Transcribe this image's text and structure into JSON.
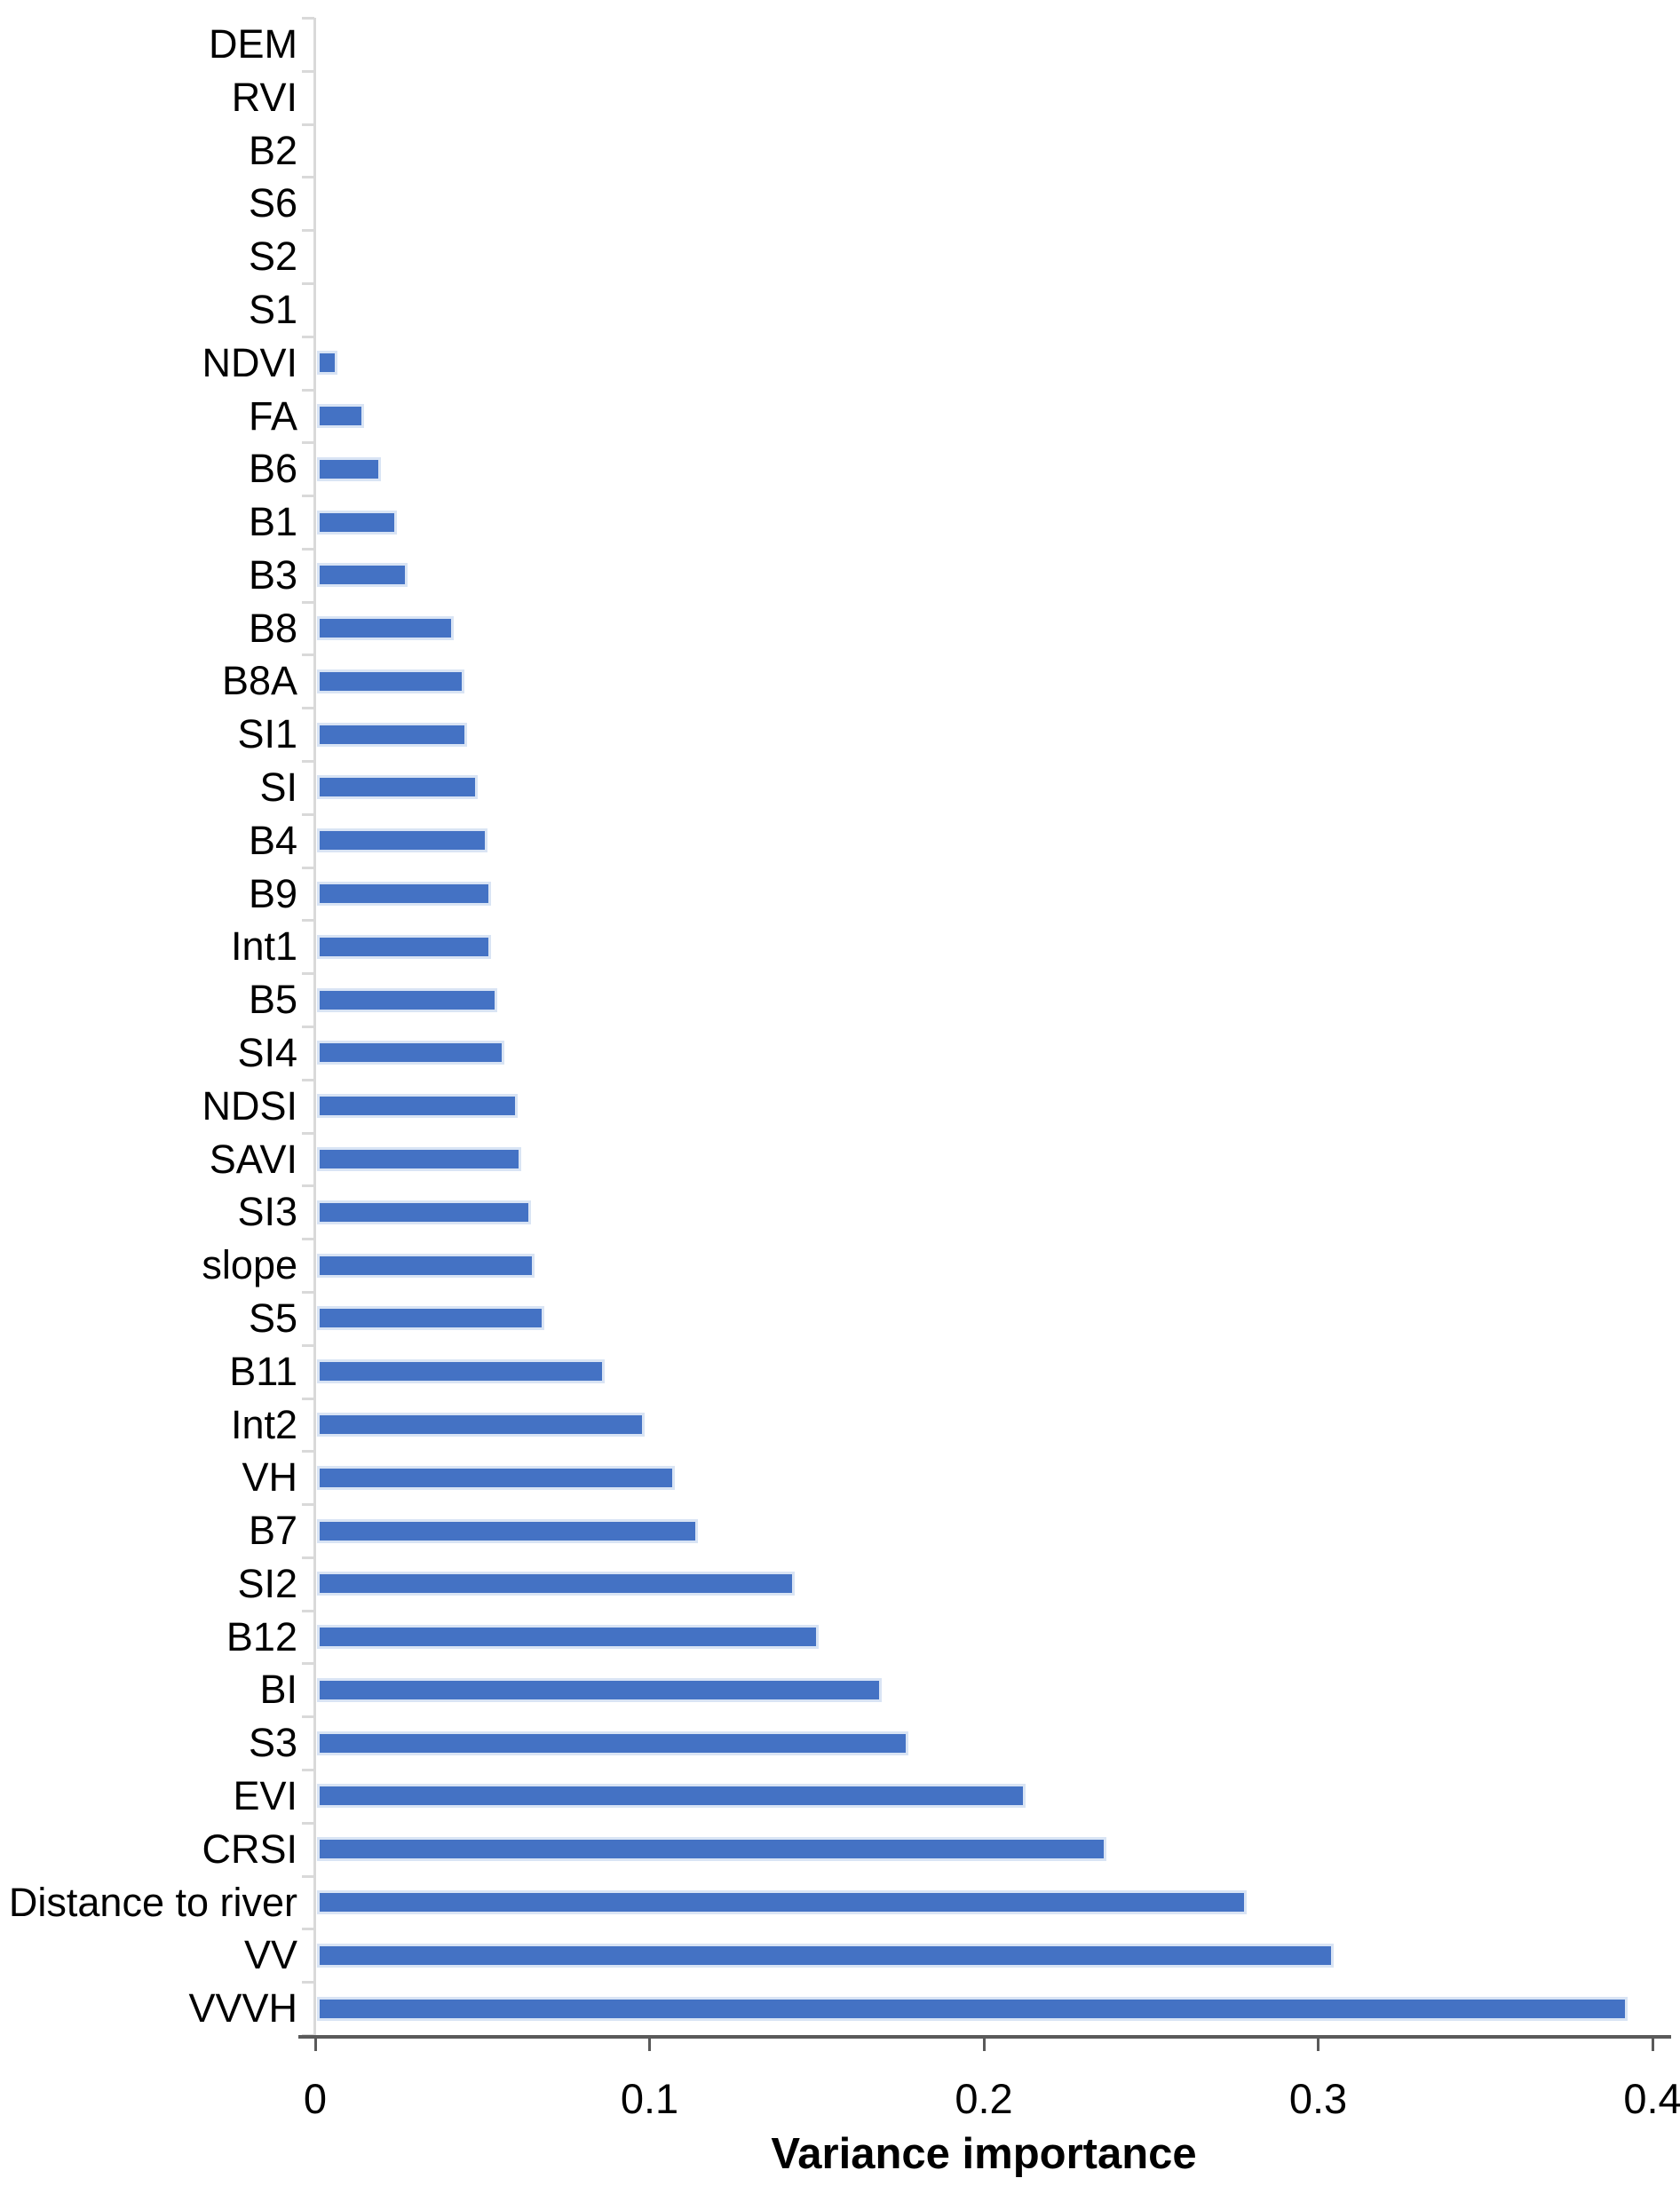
{
  "figure": {
    "background_color": "#ffffff",
    "text_color": "#000000",
    "category_axis_color": "#d9d9d9",
    "value_axis_color": "#5a5a5a"
  },
  "chart_data": {
    "type": "bar",
    "orientation": "horizontal",
    "title": "",
    "xlabel": "Variance importance",
    "ylabel": "",
    "xlim": [
      0,
      0.4
    ],
    "xticks": [
      0,
      0.1,
      0.2,
      0.3,
      0.4
    ],
    "xtick_labels": [
      "0",
      "0.1",
      "0.2",
      "0.3",
      "0.4"
    ],
    "grid": false,
    "legend": false,
    "bar_color": "#4472C4",
    "bar_border_color": "#d9e4f4",
    "categories": [
      "DEM",
      "RVI",
      "B2",
      "S6",
      "S2",
      "S1",
      "NDVI",
      "FA",
      "B6",
      "B1",
      "B3",
      "B8",
      "B8A",
      "SI1",
      "SI",
      "B4",
      "B9",
      "Int1",
      "B5",
      "SI4",
      "NDSI",
      "SAVI",
      "SI3",
      "slope",
      "S5",
      "B11",
      "Int2",
      "VH",
      "B7",
      "SI2",
      "B12",
      "BI",
      "S3",
      "EVI",
      "CRSI",
      "Distance to river",
      "VV",
      "VVVH"
    ],
    "values": [
      0,
      0,
      0,
      0,
      0,
      0,
      0.006,
      0.014,
      0.019,
      0.024,
      0.027,
      0.041,
      0.044,
      0.045,
      0.048,
      0.051,
      0.052,
      0.052,
      0.054,
      0.056,
      0.06,
      0.061,
      0.064,
      0.065,
      0.068,
      0.086,
      0.098,
      0.107,
      0.114,
      0.143,
      0.15,
      0.169,
      0.177,
      0.212,
      0.236,
      0.278,
      0.304,
      0.392
    ]
  }
}
